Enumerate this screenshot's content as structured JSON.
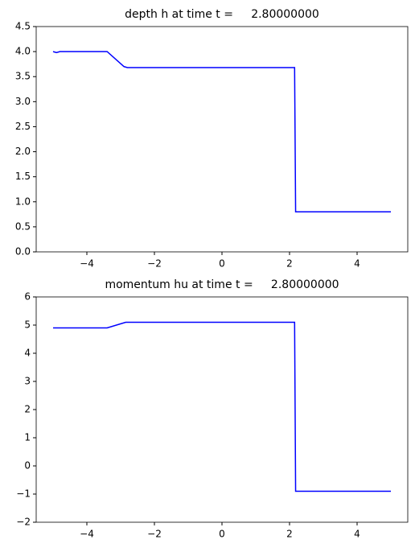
{
  "chart_data": [
    {
      "type": "line",
      "title": "depth h at time t =     2.80000000",
      "x": [
        -5,
        -4.9,
        -4.8,
        -3.4,
        -2.9,
        -2.8,
        0,
        2.15,
        2.18,
        5
      ],
      "series": [
        {
          "color": "#0000ff",
          "values": [
            4.0,
            3.98,
            4.0,
            4.0,
            3.7,
            3.68,
            3.68,
            3.68,
            0.8,
            0.8
          ]
        }
      ],
      "xlim": [
        -5.5,
        5.5
      ],
      "xticks": [
        {
          "value": -4,
          "label": "−4"
        },
        {
          "value": -2,
          "label": "−2"
        },
        0,
        2,
        4
      ],
      "ylim": [
        0,
        4.5
      ],
      "yticks": [
        {
          "value": 0,
          "label": "0.0"
        },
        0.5,
        {
          "value": 1,
          "label": "1.0"
        },
        1.5,
        {
          "value": 2,
          "label": "2.0"
        },
        2.5,
        {
          "value": 3,
          "label": "3.0"
        },
        3.5,
        {
          "value": 4,
          "label": "4.0"
        },
        4.5
      ]
    },
    {
      "type": "line",
      "title": "momentum hu at time t =     2.80000000",
      "x": [
        -5,
        -4.9,
        -3.4,
        -2.85,
        0,
        2.15,
        2.18,
        5
      ],
      "series": [
        {
          "color": "#0000ff",
          "values": [
            4.9,
            4.9,
            4.9,
            5.1,
            5.1,
            5.1,
            -0.9,
            -0.9
          ]
        }
      ],
      "xlim": [
        -5.5,
        5.5
      ],
      "xticks": [
        {
          "value": -4,
          "label": "−4"
        },
        {
          "value": -2,
          "label": "−2"
        },
        0,
        2,
        4
      ],
      "ylim": [
        -2,
        6
      ],
      "yticks": [
        {
          "value": -2,
          "label": "−2"
        },
        {
          "value": -1,
          "label": "−1"
        },
        0,
        1,
        2,
        3,
        4,
        5,
        6
      ]
    }
  ]
}
